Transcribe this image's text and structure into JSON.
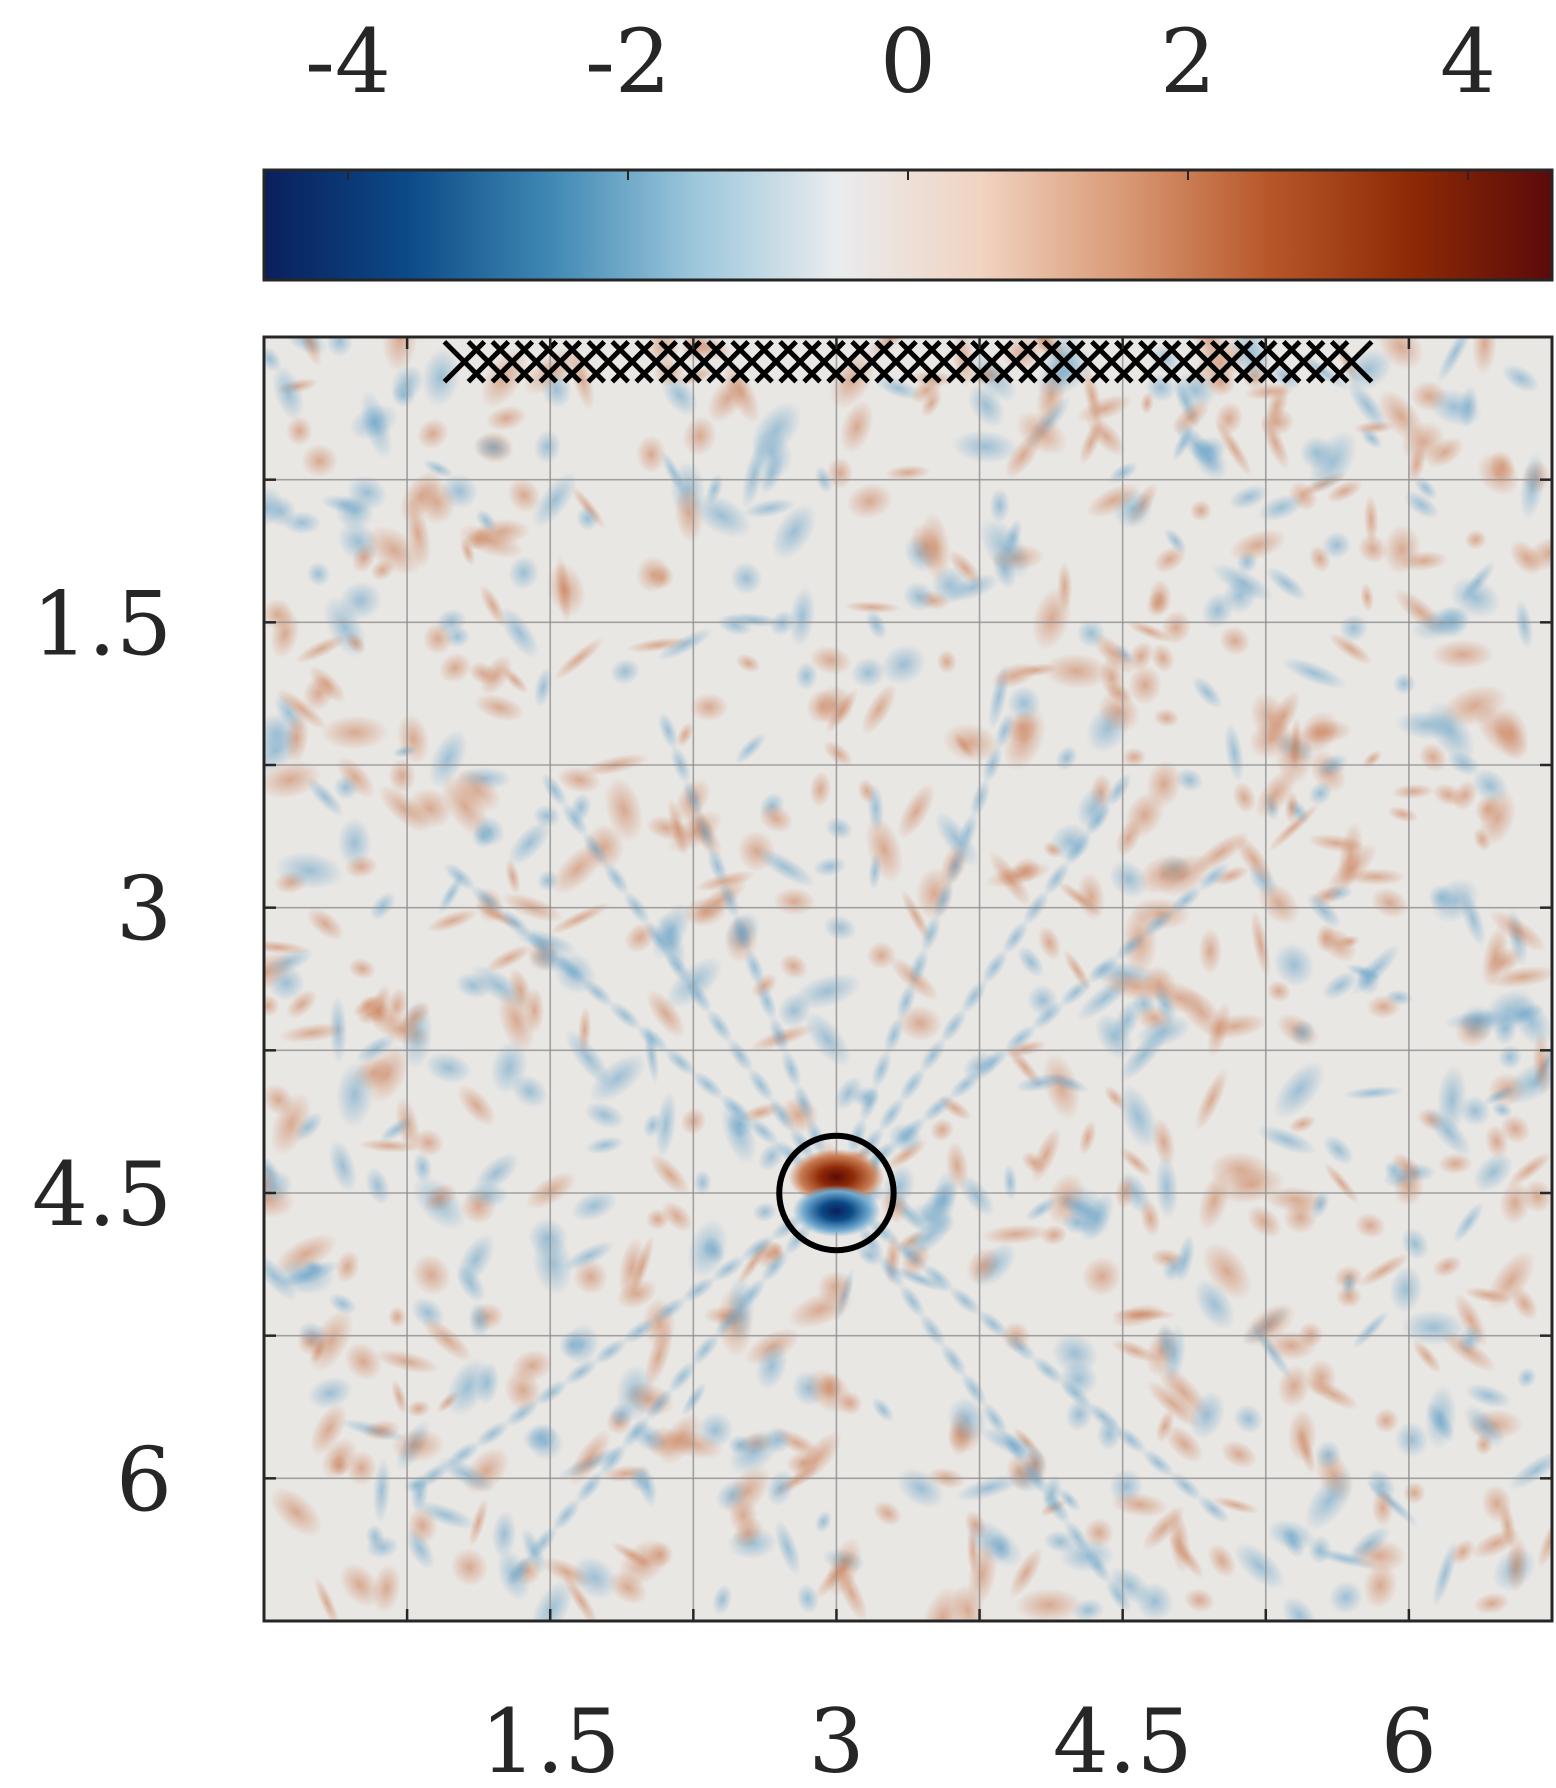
{
  "chart_data": {
    "type": "heatmap",
    "title": "",
    "xlabel": "",
    "ylabel": "",
    "xlim": [
      0,
      6.75
    ],
    "ylim": [
      0,
      6.75
    ],
    "y_axis_direction": "down",
    "grid": true,
    "grid_step": 0.75,
    "xticks": [
      {
        "value": 1.5,
        "label": "1.5"
      },
      {
        "value": 3,
        "label": "3"
      },
      {
        "value": 4.5,
        "label": "4.5"
      },
      {
        "value": 6,
        "label": "6"
      }
    ],
    "yticks": [
      {
        "value": 1.5,
        "label": "1.5"
      },
      {
        "value": 3,
        "label": "3"
      },
      {
        "value": 4.5,
        "label": "4.5"
      },
      {
        "value": 6,
        "label": "6"
      }
    ],
    "colorbar": {
      "orientation": "horizontal",
      "placement": "top",
      "range": [
        -4.6,
        4.6
      ],
      "ticks": [
        {
          "value": -4,
          "label": "-4"
        },
        {
          "value": -2,
          "label": "-2"
        },
        {
          "value": 0,
          "label": "0"
        },
        {
          "value": 2,
          "label": "2"
        },
        {
          "value": 4,
          "label": "4"
        }
      ],
      "colormap": [
        "#0a1f5c",
        "#0b4a87",
        "#3f88b3",
        "#9cc6db",
        "#e9ecee",
        "#f1d4c2",
        "#d99a76",
        "#b8582a",
        "#8e2a06",
        "#5b0a0a"
      ]
    },
    "background_value": 0,
    "features": [
      {
        "kind": "dipole",
        "x": 3.0,
        "y": 4.5,
        "positive_value": 4.5,
        "negative_value": -4.5
      },
      {
        "kind": "circle",
        "cx": 3.0,
        "cy": 4.5,
        "r": 0.3
      }
    ],
    "markers": {
      "symbol": "x",
      "y": 0.13,
      "x_start": 1.05,
      "x_end": 5.7,
      "count": 38
    },
    "colors": {
      "positive": "#d7906a",
      "negative": "#7fb3d1",
      "neutral": "#e9e7e4",
      "axis": "#262626",
      "grid": "#8f8f8f"
    }
  }
}
